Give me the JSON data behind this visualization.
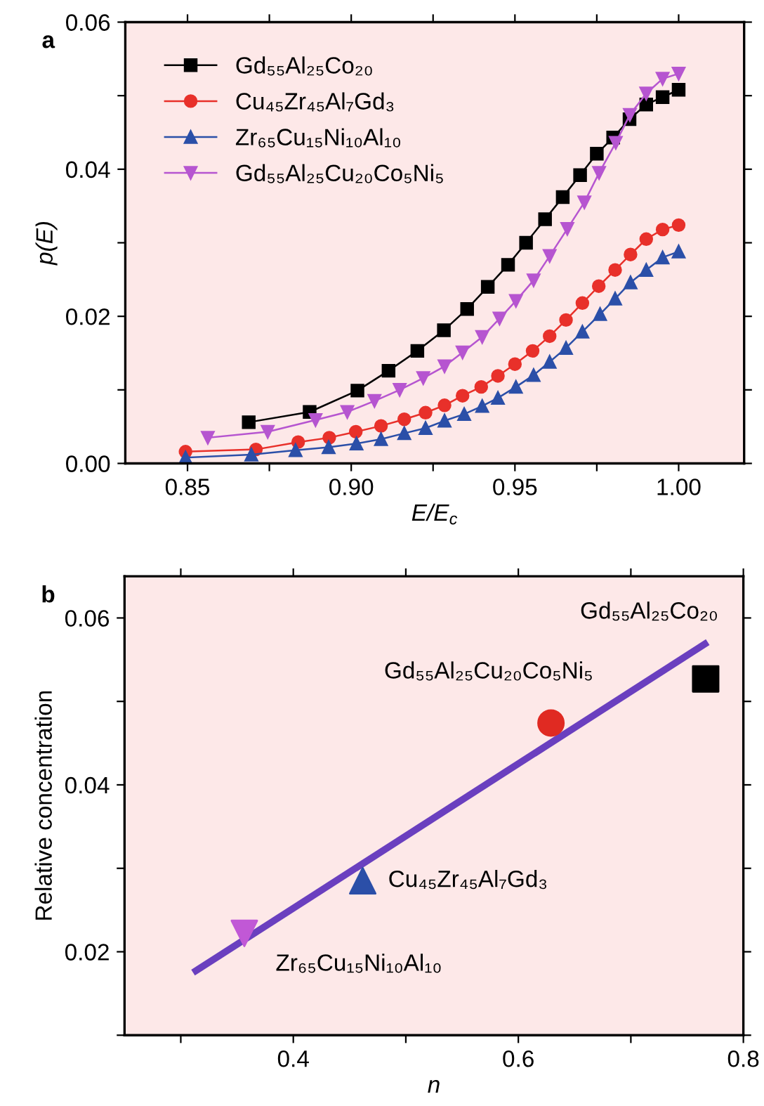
{
  "chart_data": [
    {
      "type": "line",
      "xlabel": "E/E$_{c}$",
      "ylabel": "p(E)",
      "annotations": [
        "a"
      ],
      "legend": "top left",
      "grid": false,
      "line_style": "solid",
      "xlim": [
        0.831,
        1.02
      ],
      "xticks": [
        0.85,
        {
          "value": 0.875,
          "label": null
        },
        {
          "value": 0.9,
          "label": "0.90"
        },
        {
          "value": 0.925,
          "label": null
        },
        0.95,
        {
          "value": 0.975,
          "label": null
        },
        {
          "value": 1.0,
          "label": "1.00"
        }
      ],
      "ylim": [
        0,
        0.06
      ],
      "yticks": [
        {
          "value": 0,
          "label": "0.00"
        },
        {
          "value": 0.01,
          "label": null
        },
        0.02,
        {
          "value": 0.03,
          "label": null
        },
        0.04,
        {
          "value": 0.05,
          "label": null
        },
        0.06
      ],
      "series": [
        {
          "name": "Gd₅₅Al₂₅Co₂₀",
          "color": "#000000",
          "marker": "square",
          "x": [
            0.8687,
            0.8873,
            0.9019,
            0.9114,
            0.9202,
            0.9283,
            0.9354,
            0.9417,
            0.9479,
            0.9534,
            0.9592,
            0.9646,
            0.9699,
            0.975,
            0.98,
            0.985,
            0.9901,
            0.9951,
            1.0
          ],
          "values": [
            0.0056,
            0.007,
            0.0099,
            0.0126,
            0.0153,
            0.0181,
            0.021,
            0.024,
            0.027,
            0.03,
            0.0332,
            0.0362,
            0.0392,
            0.0421,
            0.0443,
            0.0468,
            0.0488,
            0.0498,
            0.0508
          ]
        },
        {
          "name": "Cu₄₅Zr₄₅Al₇Gd₃",
          "color": "#e8302a",
          "marker": "circle",
          "x": [
            0.8494,
            0.8709,
            0.8838,
            0.8933,
            0.9014,
            0.9091,
            0.9162,
            0.9227,
            0.9285,
            0.934,
            0.9397,
            0.9448,
            0.95,
            0.9554,
            0.9606,
            0.9656,
            0.9706,
            0.9756,
            0.9806,
            0.9853,
            0.9901,
            0.9951,
            1.0
          ],
          "values": [
            0.0016,
            0.0019,
            0.0029,
            0.0035,
            0.0043,
            0.0051,
            0.006,
            0.0069,
            0.0079,
            0.0092,
            0.0104,
            0.0119,
            0.0135,
            0.0153,
            0.0173,
            0.0195,
            0.0218,
            0.0241,
            0.0263,
            0.0284,
            0.0305,
            0.0318,
            0.0324
          ]
        },
        {
          "name": "Zr₆₅Cu₁₅Ni₁₀Al₁₀",
          "color": "#2b4fa8",
          "marker": "triangle",
          "x": [
            0.8494,
            0.8695,
            0.883,
            0.8931,
            0.9016,
            0.9091,
            0.9162,
            0.9227,
            0.9285,
            0.9345,
            0.94,
            0.9448,
            0.9503,
            0.9557,
            0.9606,
            0.9656,
            0.9706,
            0.976,
            0.9806,
            0.9853,
            0.9901,
            0.9951,
            1.0
          ],
          "values": [
            0.0008,
            0.0012,
            0.0018,
            0.0022,
            0.0027,
            0.0033,
            0.0041,
            0.0048,
            0.0058,
            0.0067,
            0.0078,
            0.0089,
            0.0104,
            0.012,
            0.0138,
            0.0157,
            0.0179,
            0.0203,
            0.0224,
            0.0246,
            0.0263,
            0.028,
            0.0288
          ]
        },
        {
          "name": "Gd₅₅Al₂₅Cu₂₀Co₅Ni₅",
          "color": "#b655d0",
          "marker": "triangle_down",
          "x": [
            0.8562,
            0.8745,
            0.8891,
            0.8988,
            0.9071,
            0.9148,
            0.922,
            0.9285,
            0.934,
            0.94,
            0.9453,
            0.9503,
            0.9557,
            0.9606,
            0.966,
            0.9712,
            0.9757,
            0.9808,
            0.9851,
            0.9901,
            0.9951,
            1.0
          ],
          "values": [
            0.0035,
            0.0043,
            0.0059,
            0.007,
            0.0085,
            0.01,
            0.0116,
            0.0132,
            0.0151,
            0.0172,
            0.0197,
            0.0221,
            0.0249,
            0.0282,
            0.0319,
            0.0355,
            0.0395,
            0.0436,
            0.0474,
            0.0503,
            0.0523,
            0.053
          ]
        }
      ]
    },
    {
      "type": "scatter",
      "xlabel": "n",
      "ylabel": "Relative concentration",
      "annotations": [
        "b",
        {
          "text": "Gd₅₅Al₂₅Co₂₀",
          "x": 0.7665,
          "y": 0.0527
        },
        {
          "text": "Gd₅₅Al₂₅Cu₂₀Co₅Ni₅",
          "x": 0.629,
          "y": 0.0474
        },
        {
          "text": "Cu₄₅Zr₄₅Al₇Gd₃",
          "x": 0.4617,
          "y": 0.0285
        },
        {
          "text": "Zr₆₅Cu₁₅Ni₁₀Al₁₀",
          "x": 0.3565,
          "y": 0.0222
        }
      ],
      "grid": false,
      "xlim": [
        0.25,
        0.8
      ],
      "xticks": [
        {
          "value": 0.3,
          "label": null
        },
        0.4,
        {
          "value": 0.5,
          "label": null
        },
        0.6,
        {
          "value": 0.7,
          "label": null
        },
        0.8
      ],
      "ylim": [
        0.01,
        0.065
      ],
      "yticks": [
        {
          "value": 0.01,
          "label": null
        },
        0.02,
        {
          "value": 0.03,
          "label": null
        },
        0.04,
        {
          "value": 0.05,
          "label": null
        },
        0.06
      ],
      "series": [
        {
          "type": "line",
          "color": "#6a3fbf",
          "marker": "none",
          "x": [
            0.3109,
            0.7683
          ],
          "values": [
            0.0175,
            0.0571
          ]
        },
        {
          "color": "#000000",
          "marker": "square",
          "x": [
            0.7665
          ],
          "values": [
            0.0527
          ]
        },
        {
          "color": "#e02a22",
          "marker": "circle",
          "x": [
            0.629
          ],
          "values": [
            0.0474
          ]
        },
        {
          "color": "#2b4fa8",
          "marker": "triangle",
          "x": [
            0.4617
          ],
          "values": [
            0.0285
          ]
        },
        {
          "color": "#c158d6",
          "marker": "triangle_down",
          "x": [
            0.3565
          ],
          "values": [
            0.0222
          ]
        }
      ]
    }
  ]
}
